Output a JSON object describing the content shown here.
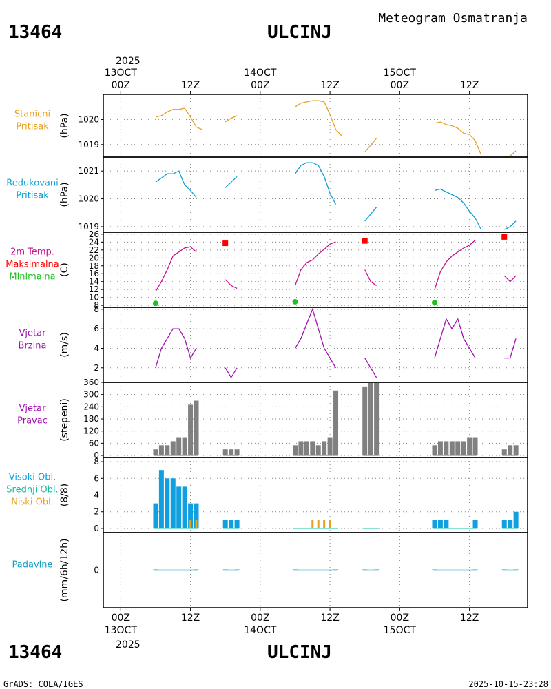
{
  "header": {
    "station_id": "13464",
    "station_name": "ULCINJ",
    "title": "Meteogram Osmatranja"
  },
  "footer": {
    "credit": "GrADS: COLA/IGES",
    "timestamp": "2025-10-15-23:28"
  },
  "time_axis": {
    "year": "2025",
    "day_labels": [
      "13OCT",
      "14OCT",
      "15OCT"
    ],
    "ticks": [
      "00Z",
      "12Z",
      "00Z",
      "12Z",
      "00Z",
      "12Z"
    ],
    "range_hours": [
      -3,
      70
    ]
  },
  "colors": {
    "pressure": "#e8a020",
    "reduced": "#10a0d0",
    "temp": "#c8108c",
    "max": "#ff0000",
    "min": "#20c020",
    "wind": "#a010b0",
    "bar": "#808080",
    "high_cloud": "#10a0e0",
    "mid_cloud": "#10c0a0",
    "low_cloud": "#e8a020",
    "precip": "#10a0c0"
  },
  "chart_data": [
    {
      "type": "line",
      "title": "Stanicni Pritisak",
      "title_lines": [
        "Stanicni",
        "Pritisak"
      ],
      "ylabel": "(hPa)",
      "ylim": [
        1018.5,
        1021.0
      ],
      "yticks": [
        "1019",
        "1020"
      ],
      "ytick_values": [
        1019,
        1020
      ],
      "series": [
        {
          "name": "Stanicni Pritisak",
          "segments": [
            [
              [
                6,
                1020.1
              ],
              [
                7,
                1020.15
              ],
              [
                8,
                1020.3
              ],
              [
                9,
                1020.4
              ],
              [
                10,
                1020.4
              ],
              [
                11,
                1020.45
              ],
              [
                12,
                1020.1
              ],
              [
                13,
                1019.7
              ],
              [
                14,
                1019.6
              ]
            ],
            [
              [
                18,
                1019.9
              ],
              [
                19,
                1020.05
              ],
              [
                20,
                1020.15
              ]
            ],
            [
              [
                30,
                1020.5
              ],
              [
                31,
                1020.65
              ],
              [
                32,
                1020.7
              ],
              [
                33,
                1020.75
              ],
              [
                34,
                1020.75
              ],
              [
                35,
                1020.7
              ],
              [
                36,
                1020.2
              ],
              [
                37,
                1019.6
              ],
              [
                38,
                1019.35
              ]
            ],
            [
              [
                42,
                1018.7
              ],
              [
                44,
                1019.25
              ]
            ],
            [
              [
                54,
                1019.85
              ],
              [
                55,
                1019.9
              ],
              [
                56,
                1019.8
              ],
              [
                57,
                1019.75
              ],
              [
                58,
                1019.65
              ],
              [
                59,
                1019.45
              ],
              [
                60,
                1019.4
              ],
              [
                61,
                1019.15
              ],
              [
                62,
                1018.6
              ]
            ],
            [
              [
                66,
                1018.5
              ],
              [
                67,
                1018.55
              ],
              [
                68,
                1018.75
              ]
            ]
          ]
        }
      ]
    },
    {
      "type": "line",
      "title": "Redukovani Pritisak",
      "title_lines": [
        "Redukovani",
        "Pritisak"
      ],
      "ylabel": "(hPa)",
      "ylim": [
        1018.8,
        1021.5
      ],
      "yticks": [
        "1019",
        "1020",
        "1021"
      ],
      "ytick_values": [
        1019,
        1020,
        1021
      ],
      "series": [
        {
          "name": "Redukovani Pritisak",
          "segments": [
            [
              [
                6,
                1020.6
              ],
              [
                7,
                1020.75
              ],
              [
                8,
                1020.9
              ],
              [
                9,
                1020.9
              ],
              [
                10,
                1021.0
              ],
              [
                11,
                1020.5
              ],
              [
                12,
                1020.3
              ],
              [
                13,
                1020.05
              ]
            ],
            [
              [
                18,
                1020.4
              ],
              [
                19,
                1020.6
              ],
              [
                20,
                1020.8
              ]
            ],
            [
              [
                30,
                1020.9
              ],
              [
                31,
                1021.2
              ],
              [
                32,
                1021.3
              ],
              [
                33,
                1021.3
              ],
              [
                34,
                1021.2
              ],
              [
                35,
                1020.8
              ],
              [
                36,
                1020.2
              ],
              [
                37,
                1019.8
              ]
            ],
            [
              [
                42,
                1019.2
              ],
              [
                44,
                1019.7
              ]
            ],
            [
              [
                54,
                1020.3
              ],
              [
                55,
                1020.35
              ],
              [
                56,
                1020.25
              ],
              [
                57,
                1020.15
              ],
              [
                58,
                1020.05
              ],
              [
                59,
                1019.85
              ],
              [
                60,
                1019.55
              ],
              [
                61,
                1019.3
              ],
              [
                62,
                1018.9
              ]
            ],
            [
              [
                66,
                1018.9
              ],
              [
                67,
                1019.0
              ],
              [
                68,
                1019.2
              ]
            ]
          ]
        }
      ]
    },
    {
      "type": "line",
      "title": "2m Temp. Maksimalna Minimalna",
      "title_lines": [
        "2m Temp.",
        "Maksimalna",
        "Minimalna"
      ],
      "ylabel": "(C)",
      "ylim": [
        7.5,
        26.5
      ],
      "yticks": [
        "8",
        "10",
        "12",
        "14",
        "16",
        "18",
        "20",
        "22",
        "24",
        "26"
      ],
      "ytick_values": [
        8,
        10,
        12,
        14,
        16,
        18,
        20,
        22,
        24,
        26
      ],
      "series": [
        {
          "name": "2m Temp.",
          "segments": [
            [
              [
                6,
                11.5
              ],
              [
                7,
                14
              ],
              [
                8,
                17
              ],
              [
                9,
                20.5
              ],
              [
                10,
                21.5
              ],
              [
                11,
                22.5
              ],
              [
                12,
                22.8
              ],
              [
                13,
                21.5
              ]
            ],
            [
              [
                18,
                14.5
              ],
              [
                19,
                13
              ],
              [
                20,
                12.3
              ]
            ],
            [
              [
                30,
                13
              ],
              [
                31,
                17
              ],
              [
                32,
                18.8
              ],
              [
                33,
                19.5
              ],
              [
                34,
                21
              ],
              [
                35,
                22.2
              ],
              [
                36,
                23.5
              ],
              [
                37,
                24
              ]
            ],
            [
              [
                42,
                17
              ],
              [
                43,
                14
              ],
              [
                44,
                13
              ]
            ],
            [
              [
                54,
                12
              ],
              [
                55,
                16.5
              ],
              [
                56,
                19
              ],
              [
                57,
                20.5
              ],
              [
                58,
                21.5
              ],
              [
                59,
                22.5
              ],
              [
                60,
                23.2
              ],
              [
                61,
                24.5
              ]
            ],
            [
              [
                66,
                15.5
              ],
              [
                67,
                14
              ],
              [
                68,
                15.5
              ]
            ]
          ]
        },
        {
          "name": "Maksimalna",
          "points": [
            [
              18,
              23.7
            ],
            [
              42,
              24.3
            ],
            [
              66,
              25.3
            ]
          ]
        },
        {
          "name": "Minimalna",
          "points": [
            [
              6,
              8.5
            ],
            [
              30,
              8.9
            ],
            [
              54,
              8.7
            ]
          ]
        }
      ]
    },
    {
      "type": "line",
      "title": "Vjetar Brzina",
      "title_lines": [
        "Vjetar",
        "Brzina"
      ],
      "ylabel": "(m/s)",
      "ylim": [
        0.5,
        8.2
      ],
      "yticks": [
        "2",
        "4",
        "6",
        "8"
      ],
      "ytick_values": [
        2,
        4,
        6,
        8
      ],
      "series": [
        {
          "name": "Vjetar Brzina",
          "segments": [
            [
              [
                6,
                2
              ],
              [
                7,
                4
              ],
              [
                9,
                6
              ],
              [
                10,
                6
              ],
              [
                11,
                5
              ],
              [
                12,
                3
              ],
              [
                13,
                4
              ]
            ],
            [
              [
                18,
                2
              ],
              [
                19,
                1
              ],
              [
                20,
                2
              ]
            ],
            [
              [
                30,
                4
              ],
              [
                31,
                5
              ],
              [
                33,
                8
              ],
              [
                34,
                6
              ],
              [
                35,
                4
              ],
              [
                36,
                3
              ],
              [
                37,
                2
              ]
            ],
            [
              [
                42,
                3
              ],
              [
                44,
                1
              ]
            ],
            [
              [
                54,
                3
              ],
              [
                55,
                5
              ],
              [
                56,
                7
              ],
              [
                57,
                6
              ],
              [
                58,
                7
              ],
              [
                59,
                5
              ],
              [
                60,
                4
              ],
              [
                61,
                3
              ]
            ],
            [
              [
                66,
                3
              ],
              [
                67,
                3
              ],
              [
                68,
                5
              ]
            ]
          ]
        }
      ]
    },
    {
      "type": "bar",
      "title": "Vjetar Pravac",
      "title_lines": [
        "Vjetar",
        "Pravac"
      ],
      "ylabel": "(stepeni)",
      "ylim": [
        -10,
        360
      ],
      "yticks": [
        "0",
        "60",
        "120",
        "180",
        "240",
        "300",
        "360"
      ],
      "ytick_values": [
        0,
        60,
        120,
        180,
        240,
        300,
        360
      ],
      "series": [
        {
          "name": "Vjetar Pravac",
          "points": [
            [
              6,
              30
            ],
            [
              7,
              50
            ],
            [
              8,
              50
            ],
            [
              9,
              70
            ],
            [
              10,
              90
            ],
            [
              11,
              90
            ],
            [
              12,
              250
            ],
            [
              13,
              270
            ],
            [
              18,
              30
            ],
            [
              19,
              30
            ],
            [
              20,
              30
            ],
            [
              30,
              50
            ],
            [
              31,
              70
            ],
            [
              32,
              70
            ],
            [
              33,
              70
            ],
            [
              34,
              50
            ],
            [
              35,
              70
            ],
            [
              36,
              90
            ],
            [
              37,
              320
            ],
            [
              42,
              340
            ],
            [
              43,
              360
            ],
            [
              44,
              360
            ],
            [
              54,
              50
            ],
            [
              55,
              70
            ],
            [
              56,
              70
            ],
            [
              57,
              70
            ],
            [
              58,
              70
            ],
            [
              59,
              70
            ],
            [
              60,
              90
            ],
            [
              61,
              90
            ],
            [
              66,
              30
            ],
            [
              67,
              50
            ],
            [
              68,
              50
            ]
          ]
        }
      ]
    },
    {
      "type": "bar",
      "title": "Visoki Obl. Srednji Obl. Niski Obl.",
      "title_lines": [
        "Visoki Obl.",
        "Srednji Obl.",
        "Niski Obl."
      ],
      "ylabel": "(8/8)",
      "ylim": [
        -0.5,
        8.5
      ],
      "yticks": [
        "0",
        "2",
        "4",
        "6",
        "8"
      ],
      "ytick_values": [
        0,
        2,
        4,
        6,
        8
      ],
      "series": [
        {
          "name": "Visoki Obl.",
          "points": [
            [
              6,
              3
            ],
            [
              7,
              7
            ],
            [
              8,
              6
            ],
            [
              9,
              6
            ],
            [
              10,
              5
            ],
            [
              11,
              5
            ],
            [
              12,
              3
            ],
            [
              13,
              3
            ],
            [
              18,
              1
            ],
            [
              19,
              1
            ],
            [
              20,
              1
            ],
            [
              54,
              1
            ],
            [
              55,
              1
            ],
            [
              56,
              1
            ],
            [
              61,
              1
            ],
            [
              66,
              1
            ],
            [
              67,
              1
            ],
            [
              68,
              2
            ]
          ]
        },
        {
          "name": "Srednji Obl.",
          "points": []
        },
        {
          "name": "Niski Obl.",
          "points": [
            [
              12,
              1
            ],
            [
              13,
              1
            ],
            [
              33,
              1
            ],
            [
              34,
              1
            ],
            [
              35,
              1
            ],
            [
              36,
              1
            ]
          ]
        }
      ]
    },
    {
      "type": "bar",
      "title": "Padavine",
      "title_lines": [
        "Padavine"
      ],
      "ylabel": "(mm/6h/12h)",
      "ylim": [
        -4,
        4
      ],
      "yticks": [
        "0"
      ],
      "ytick_values": [
        0
      ],
      "series": [
        {
          "name": "Padavine",
          "points": [
            [
              6,
              0
            ],
            [
              13,
              0
            ],
            [
              18,
              0
            ],
            [
              20,
              0
            ],
            [
              30,
              0
            ],
            [
              37,
              0
            ],
            [
              42,
              0
            ],
            [
              44,
              0
            ],
            [
              54,
              0
            ],
            [
              61,
              0
            ],
            [
              66,
              0
            ],
            [
              68,
              0
            ]
          ]
        }
      ]
    }
  ]
}
